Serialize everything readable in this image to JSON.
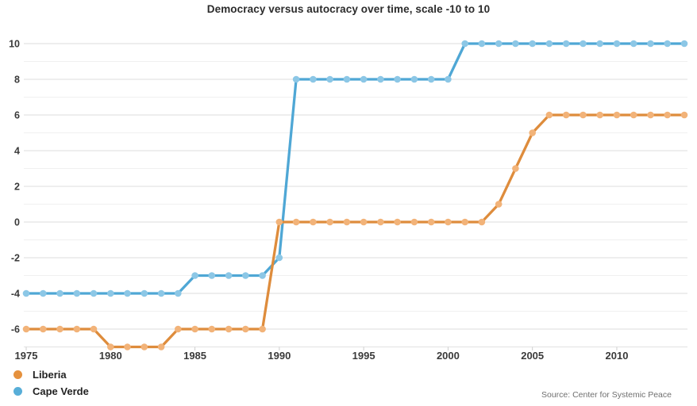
{
  "title": "Democracy versus autocracy over time, scale -10 to 10",
  "source": "Source: Center for Systemic Peace",
  "legend": [
    {
      "label": "Liberia",
      "color": "#e5913e"
    },
    {
      "label": "Cape Verde",
      "color": "#58aed8"
    }
  ],
  "chart_data": {
    "type": "line",
    "title": "Democracy versus autocracy over time, scale -10 to 10",
    "xlabel": "",
    "ylabel": "",
    "x": [
      1975,
      1976,
      1977,
      1978,
      1979,
      1980,
      1981,
      1982,
      1983,
      1984,
      1985,
      1986,
      1987,
      1988,
      1989,
      1990,
      1991,
      1992,
      1993,
      1994,
      1995,
      1996,
      1997,
      1998,
      1999,
      2000,
      2001,
      2002,
      2003,
      2004,
      2005,
      2006,
      2007,
      2008,
      2009,
      2010,
      2011,
      2012,
      2013,
      2014
    ],
    "series": [
      {
        "name": "Cape Verde",
        "color": "#4fa7d5",
        "dot_color": "#8cc7e6",
        "values": [
          -4,
          -4,
          -4,
          -4,
          -4,
          -4,
          -4,
          -4,
          -4,
          -4,
          -3,
          -3,
          -3,
          -3,
          -3,
          -2,
          8,
          8,
          8,
          8,
          8,
          8,
          8,
          8,
          8,
          8,
          10,
          10,
          10,
          10,
          10,
          10,
          10,
          10,
          10,
          10,
          10,
          10,
          10,
          10
        ]
      },
      {
        "name": "Liberia",
        "color": "#de8c3c",
        "dot_color": "#f2b379",
        "values": [
          -6,
          -6,
          -6,
          -6,
          -6,
          -7,
          -7,
          -7,
          -7,
          -6,
          -6,
          -6,
          -6,
          -6,
          -6,
          0,
          0,
          0,
          0,
          0,
          0,
          0,
          0,
          0,
          0,
          0,
          0,
          0,
          1,
          3,
          5,
          6,
          6,
          6,
          6,
          6,
          6,
          6,
          6,
          6
        ]
      }
    ],
    "xticks": [
      1975,
      1980,
      1985,
      1990,
      1995,
      2000,
      2005,
      2010
    ],
    "yticks": [
      10,
      8,
      6,
      4,
      2,
      0,
      -2,
      -4,
      -6
    ],
    "yticks_minor": [
      9,
      7,
      5,
      3,
      1,
      -1,
      -3,
      -5
    ],
    "xlim": [
      1975,
      2014
    ],
    "ylim": [
      -7,
      10
    ],
    "grid": "horizontal",
    "legend_position": "bottom-left",
    "scale_note": "scale -10 to 10"
  },
  "colors": {
    "grid_major": "#dcdcdc",
    "grid_minor": "#f0f0f0",
    "axis_line": "#e2e2e2",
    "tick_mark": "#cfcfcf",
    "tick_label": "#3a3a3a"
  }
}
